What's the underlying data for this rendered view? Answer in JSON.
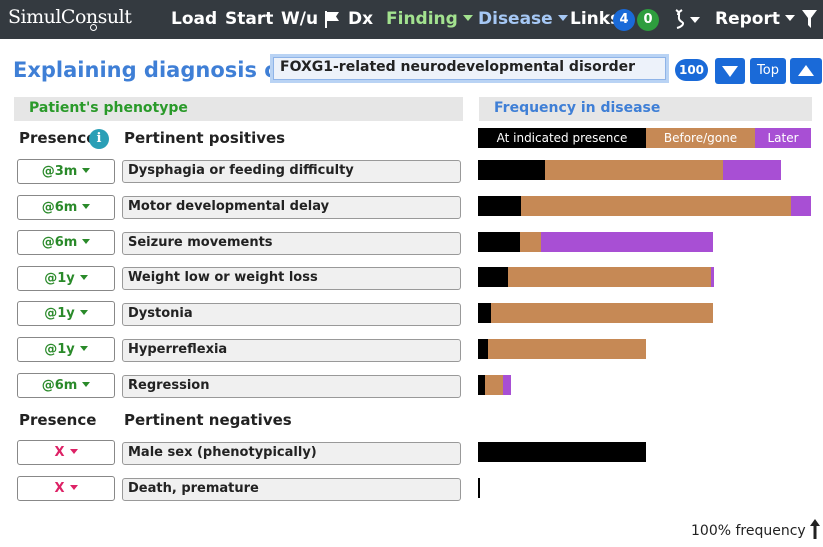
{
  "navbar": {
    "logo": "SimulConsult",
    "items": [
      {
        "label": "Load"
      },
      {
        "label": "Start"
      },
      {
        "label": "W/u"
      },
      {
        "label": "Dx"
      },
      {
        "label": "Finding"
      },
      {
        "label": "Disease"
      },
      {
        "label": "Links"
      },
      {
        "label": "Report"
      }
    ],
    "links_badges": [
      "4",
      "0"
    ],
    "icons": [
      "flag-icon",
      "dna-icon",
      "filter-icon"
    ]
  },
  "header": {
    "title": "Explaining diagnosis of",
    "diagnosis_value": "FOXG1-related neurodevelopmental disorder",
    "score_badge": "100",
    "top_button": "Top"
  },
  "left_panel": {
    "section_title": "Patient's phenotype",
    "presence_header": "Presence",
    "positives_header": "Pertinent positives",
    "negatives_presence_header": "Presence",
    "negatives_header": "Pertinent negatives"
  },
  "right_panel": {
    "section_title": "Frequency in disease",
    "legend": [
      "At indicated presence",
      "Before/gone",
      "Later"
    ]
  },
  "colors": {
    "at_presence": "#000000",
    "before_gone": "#c68955",
    "later": "#a84fd4",
    "title_blue": "#3f7fd6",
    "positive_green": "#2a8a2a",
    "negative_red": "#dd2266"
  },
  "positives": [
    {
      "presence": "@3m",
      "finding": "Dysphagia or feeding difficulty",
      "at": 0.2,
      "before": 0.535,
      "later": 0.175
    },
    {
      "presence": "@6m",
      "finding": "Motor developmental delay",
      "at": 0.13,
      "before": 0.81,
      "later": 0.06
    },
    {
      "presence": "@6m",
      "finding": "Seizure movements",
      "at": 0.125,
      "before": 0.065,
      "later": 0.515
    },
    {
      "presence": "@1y",
      "finding": "Weight low or weight loss",
      "at": 0.09,
      "before": 0.61,
      "later": 0.01
    },
    {
      "presence": "@1y",
      "finding": "Dystonia",
      "at": 0.04,
      "before": 0.665,
      "later": 0.0
    },
    {
      "presence": "@1y",
      "finding": "Hyperreflexia",
      "at": 0.03,
      "before": 0.475,
      "later": 0.0
    },
    {
      "presence": "@6m",
      "finding": "Regression",
      "at": 0.02,
      "before": 0.055,
      "later": 0.025
    }
  ],
  "negatives": [
    {
      "presence": "X",
      "finding": "Male sex (phenotypically)",
      "at": 0.505,
      "before": 0.0,
      "later": 0.0
    },
    {
      "presence": "X",
      "finding": "Death, premature",
      "at": 0.005,
      "before": 0.0,
      "later": 0.0
    }
  ],
  "footer": {
    "frequency_label": "100% frequency"
  }
}
